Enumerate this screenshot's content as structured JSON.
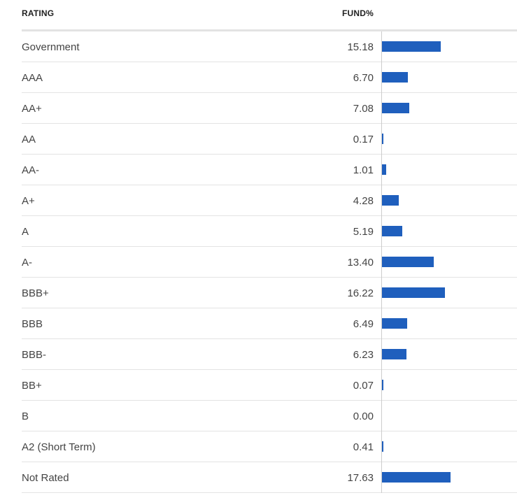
{
  "table": {
    "headers": {
      "rating": "RATING",
      "fund": "FUND%"
    }
  },
  "chart_data": {
    "type": "bar",
    "orientation": "horizontal",
    "categories": [
      "Government",
      "AAA",
      "AA+",
      "AA",
      "AA-",
      "A+",
      "A",
      "A-",
      "BBB+",
      "BBB",
      "BBB-",
      "BB+",
      "B",
      "A2 (Short Term)",
      "Not Rated"
    ],
    "value_labels": [
      "15.18",
      "6.70",
      "7.08",
      "0.17",
      "1.01",
      "4.28",
      "5.19",
      "13.40",
      "16.22",
      "6.49",
      "6.23",
      "0.07",
      "0.00",
      "0.41",
      "17.63"
    ],
    "values": [
      15.18,
      6.7,
      7.08,
      0.17,
      1.01,
      4.28,
      5.19,
      13.4,
      16.22,
      6.49,
      6.23,
      0.07,
      0.0,
      0.41,
      17.63
    ],
    "xlim": [
      0,
      35
    ],
    "bar_color": "#1f5fbd",
    "grid": false
  }
}
